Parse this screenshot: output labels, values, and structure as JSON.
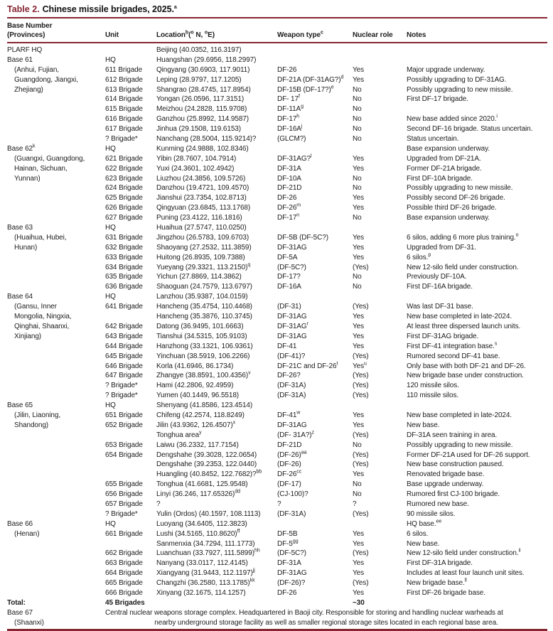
{
  "colors": {
    "accent": "#862633",
    "text": "#1d1d1d"
  },
  "title": {
    "label": "Table 2.",
    "text": "Chinese missile brigades, 2025.^{a}"
  },
  "header": {
    "base_line1": "Base Number",
    "base_line2": "(Provinces)",
    "unit": "Unit",
    "location": "Location^{b}(^{o} N, ^{o}E)",
    "weapon": "Weapon type^{c}",
    "nuclear": "Nuclear role",
    "notes": "Notes"
  },
  "rows": [
    {
      "base": "PLARF HQ",
      "loc": "Beijing (40.0352, 116.3197)"
    },
    {
      "base": "Base 61",
      "unit": "HQ",
      "loc": "Huangshan (29.6956, 118.2997)"
    },
    {
      "base": "(Anhui, Fujian,",
      "indent": true,
      "unit": "611 Brigade",
      "loc": "Qingyang (30.6903, 117.9011)",
      "weapon": "DF-26",
      "nuclear": "Yes",
      "notes": "Major upgrade underway."
    },
    {
      "base": "Guangdong, Jiangxi,",
      "indent": true,
      "unit": "612 Brigade",
      "loc": "Leping (28.9797, 117.1205)",
      "weapon": "DF-21A (DF-31AG?)^{d}",
      "nuclear": "Yes",
      "notes": "Possibly upgrading to DF-31AG."
    },
    {
      "base": "Zhejiang)",
      "indent": true,
      "unit": "613 Brigade",
      "loc": "Shangrao (28.4745, 117.8954)",
      "weapon": "DF-15B (DF-17?)^{e}",
      "nuclear": "No",
      "notes": "Possibly upgrading to new missile."
    },
    {
      "unit": "614 Brigade",
      "loc": "Yongan (26.0596, 117.3151)",
      "weapon": "DF- 17^{f}",
      "nuclear": "No",
      "notes": "First DF-17 brigade."
    },
    {
      "unit": "615 Brigade",
      "loc": "Meizhou (24.2828, 115.9708)",
      "weapon": "DF-11A^{g}",
      "nuclear": "No"
    },
    {
      "unit": "616 Brigade",
      "loc": "Ganzhou (25.8992, 114.9587)",
      "weapon": "DF-17^{h}",
      "nuclear": "No",
      "notes": "New base added since 2020.^{i}"
    },
    {
      "unit": "617 Brigade",
      "loc": "Jinhua (29.1508, 119.6153)",
      "weapon": "DF-16A^{j}",
      "nuclear": "No",
      "notes": "Second DF-16 brigade. Status uncertain."
    },
    {
      "unit": "? Brigade*",
      "loc": "Nanchang (28.5004, 115.9214)?",
      "weapon": "(GLCM?)",
      "nuclear": "No",
      "notes": "Status uncertain."
    },
    {
      "base": "Base 62^{k}",
      "unit": "HQ",
      "loc": "Kunming (24.9888, 102.8346)",
      "notes": "Base expansion underway."
    },
    {
      "base": "(Guangxi, Guangdong,",
      "indent": true,
      "unit": "621 Brigade",
      "loc": "Yibin (28.7607, 104.7914)",
      "weapon": "DF-31AG?^{l}",
      "nuclear": "Yes",
      "notes": "Upgraded from DF-21A."
    },
    {
      "base": "Hainan, Sichuan,",
      "indent": true,
      "unit": "622 Brigade",
      "loc": "Yuxi (24.3601, 102.4942)",
      "weapon": "DF-31A",
      "nuclear": "Yes",
      "notes": "Former DF-21A brigade."
    },
    {
      "base": "Yunnan)",
      "indent": true,
      "unit": "623 Brigade",
      "loc": "Liuzhou (24.3856, 109.5726)",
      "weapon": "DF-10A",
      "nuclear": "No",
      "notes": "First DF-10A brigade."
    },
    {
      "unit": "624 Brigade",
      "loc": "Danzhou (19.4721, 109.4570)",
      "weapon": "DF-21D",
      "nuclear": "No",
      "notes": "Possibly upgrading to new missile."
    },
    {
      "unit": "625 Brigade",
      "loc": "Jianshui (23.7354, 102.8713)",
      "weapon": "DF-26",
      "nuclear": "Yes",
      "notes": "Possibly second DF-26 brigade."
    },
    {
      "unit": "626 Brigade",
      "loc": "Qingyuan (23.6845, 113.1768)",
      "weapon": "DF-26^{m}",
      "nuclear": "Yes",
      "notes": "Possible third DF-26 brigade."
    },
    {
      "unit": "627 Brigade",
      "loc": "Puning (23.4122, 116.1816)",
      "weapon": "DF-17^{n}",
      "nuclear": "No",
      "notes": "Base expansion underway."
    },
    {
      "base": "Base 63",
      "unit": "HQ",
      "loc": "Huaihua (27.5747, 110.0250)"
    },
    {
      "base": "(Huaihua, Hubei,",
      "indent": true,
      "unit": "631 Brigade",
      "loc": "Jingzhou (26.5783, 109.6703)",
      "weapon": "DF-5B (DF-5C?)",
      "nuclear": "Yes",
      "notes": "6 silos, adding 6 more plus training.^{o}"
    },
    {
      "base": "Hunan)",
      "indent": true,
      "unit": "632 Brigade",
      "loc": "Shaoyang (27.2532, 111.3859)",
      "weapon": "DF-31AG",
      "nuclear": "Yes",
      "notes": "Upgraded from DF-31."
    },
    {
      "unit": "633 Brigade",
      "loc": "Huitong (26.8935, 109.7388)",
      "weapon": "DF-5A",
      "nuclear": "Yes",
      "notes": "6 silos.^{p}"
    },
    {
      "unit": "634 Brigade",
      "loc": "Yueyang (29.3321, 113.2150)^{q}",
      "weapon": "(DF-5C?)",
      "nuclear": "(Yes)",
      "notes": "New 12-silo field under construction."
    },
    {
      "unit": "635 Brigade",
      "loc": "Yichun (27.8869, 114.3862)",
      "weapon": "DF-17?",
      "nuclear": "No",
      "notes": "Previously DF-10A."
    },
    {
      "unit": "636 Brigade",
      "loc": "Shaoguan (24.7579, 113.6797)",
      "weapon": "DF-16A",
      "nuclear": "No",
      "notes": "First DF-16A brigade."
    },
    {
      "base": "Base 64",
      "unit": "HQ",
      "loc": "Lanzhou (35.9387, 104.0159)"
    },
    {
      "base": "(Gansu, Inner",
      "indent": true,
      "unit": "641 Brigade",
      "loc": "Hancheng (35.4754, 110.4468)",
      "weapon": "(DF-31)",
      "nuclear": "(Yes)",
      "notes": "Was last DF-31 base."
    },
    {
      "base": "Mongolia, Ningxia,",
      "indent": true,
      "loc": "Hancheng (35.3876, 110.3745)",
      "weapon": "DF-31AG",
      "nuclear": "Yes",
      "notes": "New base completed in late-2024."
    },
    {
      "base": "Qinghai, Shaanxi,",
      "indent": true,
      "unit": "642 Brigade",
      "loc": "Datong (36.9495, 101.6663)",
      "weapon": "DF-31AG^{r}",
      "nuclear": "Yes",
      "notes": "At least three dispersed launch units."
    },
    {
      "base": "Xinjiang)",
      "indent": true,
      "unit": "643 Brigade",
      "loc": "Tianshui (34.5315, 105.9103)",
      "weapon": "DF-31AG",
      "nuclear": "Yes",
      "notes": "First DF-31AG brigade."
    },
    {
      "unit": "644 Brigade",
      "loc": "Hanzhong (33.1321, 106.9361)",
      "weapon": "DF-41",
      "nuclear": "Yes",
      "notes": "First DF-41 integration base.^{s}"
    },
    {
      "unit": "645 Brigade",
      "loc": "Yinchuan (38.5919, 106.2266)",
      "weapon": "(DF-41)?",
      "nuclear": "(Yes)",
      "notes": "Rumored second DF-41 base."
    },
    {
      "unit": "646 Brigade",
      "loc": "Korla (41.6946, 86.1734)",
      "weapon": "DF-21C and DF-26^{t}",
      "nuclear": "Yes^{u}",
      "notes": "Only base with both DF-21 and DF-26."
    },
    {
      "unit": "647 Brigade",
      "loc": "Zhangye (38.8591, 100.4356)^{v}",
      "weapon": "DF-26?",
      "nuclear": "(Yes)",
      "notes": "New brigade base under construction."
    },
    {
      "unit": "? Brigade*",
      "loc": "Hami (42.2806, 92.4959)",
      "weapon": "(DF-31A)",
      "nuclear": "(Yes)",
      "notes": "120 missile silos."
    },
    {
      "unit": "? Brigade*",
      "loc": "Yumen (40.1449, 96.5518)",
      "weapon": "(DF-31A)",
      "nuclear": "(Yes)",
      "notes": "110 missile silos."
    },
    {
      "base": "Base 65",
      "unit": "HQ",
      "loc": "Shenyang (41.8586, 123.4514)"
    },
    {
      "base": "(Jilin, Liaoning,",
      "indent": true,
      "unit": "651 Brigade",
      "loc": "Chifeng (42.2574, 118.8249)",
      "weapon": "DF-41^{w}",
      "nuclear": "Yes",
      "notes": "New base completed in late-2024."
    },
    {
      "base": "Shandong)",
      "indent": true,
      "unit": "652 Brigade",
      "loc": "Jilin (43.9362, 126.4507)^{x}",
      "weapon": "DF-31AG",
      "nuclear": "Yes",
      "notes": "New base."
    },
    {
      "loc": "Tonghua area^{y}",
      "weapon": "(DF- 31A?)^{z}",
      "nuclear": "(Yes)",
      "notes": "DF-31A seen training in area."
    },
    {
      "unit": "653 Brigade",
      "loc": "Laiwu (36.2332, 117.7154)",
      "weapon": "DF-21D",
      "nuclear": "No",
      "notes": "Possibly upgrading to new missile."
    },
    {
      "unit": "654 Brigade",
      "loc": "Dengshahe (39.3028, 122.0654)",
      "weapon": "(DF-26)^{aa}",
      "nuclear": "(Yes)",
      "notes": "Former DF-21A used for DF-26 support."
    },
    {
      "loc": "Dengshahe (39.2353, 122.0440)",
      "weapon": "(DF-26)",
      "nuclear": "(Yes)",
      "notes": "New base construction paused."
    },
    {
      "loc": "Huangling (40.8452, 122.7682)?^{bb}",
      "weapon": "DF-26^{cc}",
      "nuclear": "Yes",
      "notes": "Renovated brigade base."
    },
    {
      "unit": "655 Brigade",
      "loc": "Tonghua (41.6681, 125.9548)",
      "weapon": "(DF-17)",
      "nuclear": "No",
      "notes": "Base upgrade underway."
    },
    {
      "unit": "656 Brigade",
      "loc": "Linyi (36.246, 117.65326)^{dd}",
      "weapon": "(CJ-100)?",
      "nuclear": "No",
      "notes": "Rumored first CJ-100 brigade."
    },
    {
      "unit": "657 Brigade",
      "loc": "?",
      "weapon": "?",
      "nuclear": "?",
      "notes": "Rumored new base."
    },
    {
      "unit": "? Brigade*",
      "loc": "Yulin (Ordos) (40.1597, 108.1113)",
      "weapon": "(DF-31A)",
      "nuclear": "(Yes)",
      "notes": "90 missile silos."
    },
    {
      "base": "Base 66",
      "unit": "HQ",
      "loc": "Luoyang (34.6405, 112.3823)",
      "notes": "HQ base.^{ee}"
    },
    {
      "base": "(Henan)",
      "indent": true,
      "unit": "661 Brigade",
      "loc": "Lushi (34.5165, 110.8620)^{ff}",
      "weapon": "DF-5B",
      "nuclear": "Yes",
      "notes": "6 silos."
    },
    {
      "loc": "Sanmenxia (34.7294, 111.1773)",
      "weapon": "DF-5^{gg}",
      "nuclear": "Yes",
      "notes": "New base."
    },
    {
      "unit": "662 Brigade",
      "loc": "Luanchuan (33.7927, 111.5899)^{hh}",
      "weapon": "(DF-5C?)",
      "nuclear": "(Yes)",
      "notes": "New 12-silo field under construction.^{ii}"
    },
    {
      "unit": "663 Brigade",
      "loc": "Nanyang (33.0117, 112.4145)",
      "weapon": "DF-31A",
      "nuclear": "Yes",
      "notes": "First DF-31A brigade."
    },
    {
      "unit": "664 Brigade",
      "loc": "Xiangyang (31.9443, 112.1197)^{jj}",
      "weapon": "DF-31AG",
      "nuclear": "Yes",
      "notes": "Includes at least four launch unit sites."
    },
    {
      "unit": "665 Brigade",
      "loc": "Changzhi (36.2580, 113.1785)^{kk}",
      "weapon": "(DF-26)?",
      "nuclear": "(Yes)",
      "notes": "New brigade base.^{ll}"
    },
    {
      "unit": "666 Brigade",
      "loc": "Xinyang (32.1675, 114.1257)",
      "weapon": "DF-26",
      "nuclear": "Yes",
      "notes": "First DF-26 brigade base."
    },
    {
      "base": "Total:",
      "unit": "45 Brigades",
      "nuclear": "~30",
      "bold": true
    },
    {
      "base": "Base 67",
      "span": "Central nuclear weapons storage complex. Headquartered in Baoji city. Responsible for storing and handling nuclear warheads at"
    },
    {
      "base": "(Shaanxi)",
      "indent": true,
      "span": "nearby underground storage facility as well as smaller regional storage sites located in each regional base area.",
      "center": true
    }
  ]
}
